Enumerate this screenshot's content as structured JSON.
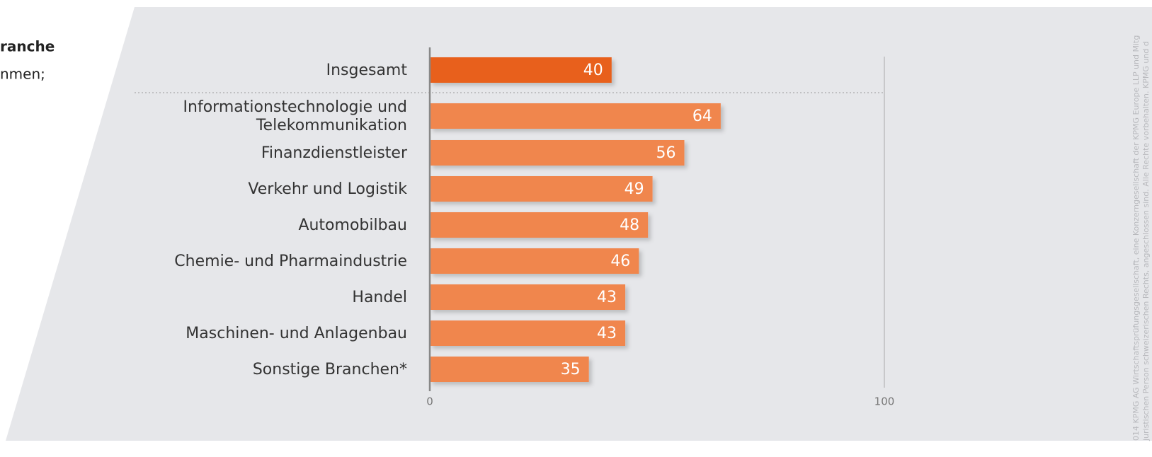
{
  "chart_data": {
    "type": "barh",
    "title": "ranche",
    "subtitle": "nmen;",
    "categories": [
      "Insgesamt",
      "Informationstechnologie und Telekommunikation",
      "Finanzdienstleister",
      "Verkehr und Logistik",
      "Automobilbau",
      "Chemie- und Pharmaindustrie",
      "Handel",
      "Maschinen- und Anlagenbau",
      "Sonstige Branchen*"
    ],
    "values": [
      40,
      64,
      56,
      49,
      48,
      46,
      43,
      43,
      35
    ],
    "colors": [
      "#e8601f",
      "#f0864e",
      "#f0864e",
      "#f0864e",
      "#f0864e",
      "#f0864e",
      "#f0864e",
      "#f0864e",
      "#f0864e"
    ],
    "xlim": [
      0,
      100
    ],
    "xticks": [
      0,
      100
    ],
    "grid": true,
    "footnote": [
      "014 KPMG AG Wirtschaftsprüfungsgesellschaft, eine Konzerngesellschaft der KPMG Europe LLP und Mitg",
      "juristischen Person schweizerischen Rechts, angeschlossen sind. Alle Rechte vorbehalten. KPMG und d"
    ]
  }
}
